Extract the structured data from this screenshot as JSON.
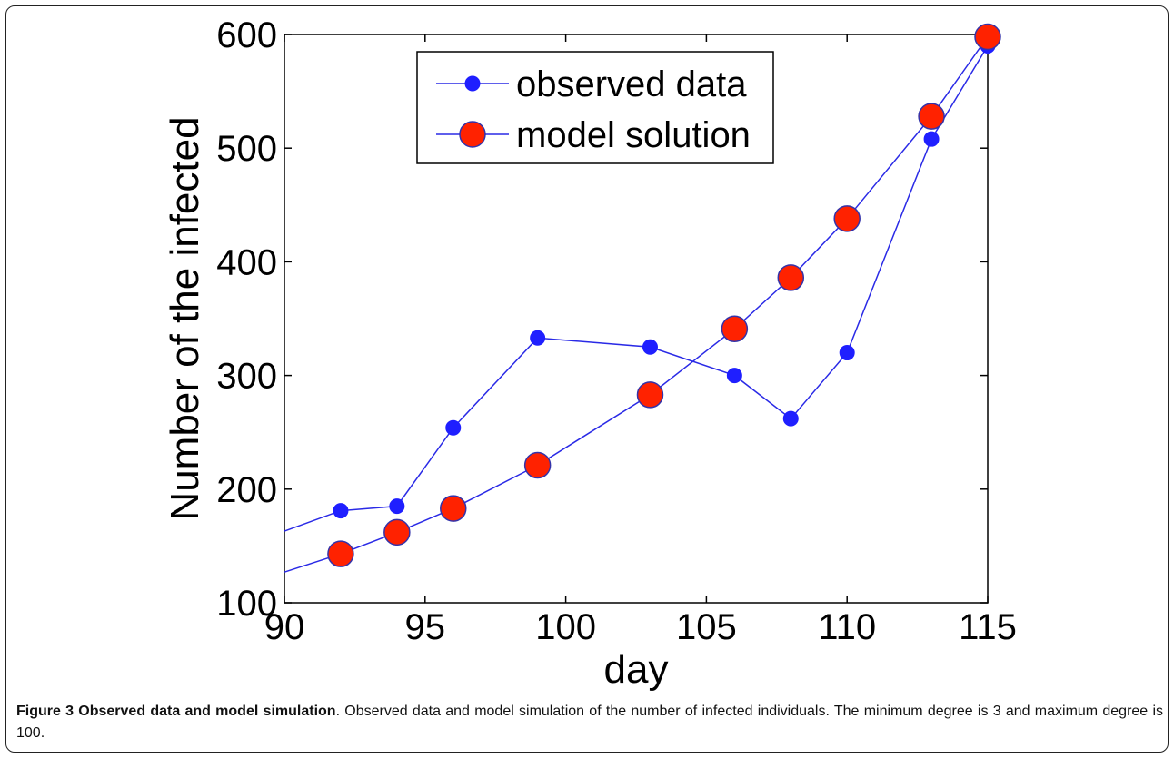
{
  "chart_data": {
    "type": "line",
    "x": [
      92,
      94,
      96,
      99,
      103,
      106,
      108,
      110,
      113,
      115
    ],
    "series": [
      {
        "name": "observed data",
        "values": [
          181,
          185,
          254,
          333,
          325,
          300,
          262,
          320,
          508,
          590
        ],
        "leading_value_at_xmin": 163,
        "color": "#1f1fff",
        "marker": "small-blue-dot"
      },
      {
        "name": "model solution",
        "values": [
          143,
          162,
          183,
          221,
          283,
          341,
          386,
          438,
          528,
          598
        ],
        "leading_value_at_xmin": 127,
        "color": "#ff2200",
        "marker": "large-red-dot"
      }
    ],
    "title": "",
    "xlabel": "day",
    "ylabel": "Number of the infected",
    "xlim": [
      90,
      115
    ],
    "ylim": [
      100,
      600
    ],
    "xticks": [
      90,
      95,
      100,
      105,
      110,
      115
    ],
    "yticks": [
      100,
      200,
      300,
      400,
      500,
      600
    ],
    "grid": false,
    "legend_position": "top-center"
  },
  "caption": {
    "title": "Figure 3 Observed data and model simulation",
    "text": ". Observed data and model simulation of the number of infected individuals. The minimum degree is 3 and maximum degree is 100."
  },
  "colors": {
    "line": "#2a2ae6",
    "observed_marker": "#1f1fff",
    "model_marker": "#ff2200",
    "model_marker_edge": "#3333aa"
  }
}
